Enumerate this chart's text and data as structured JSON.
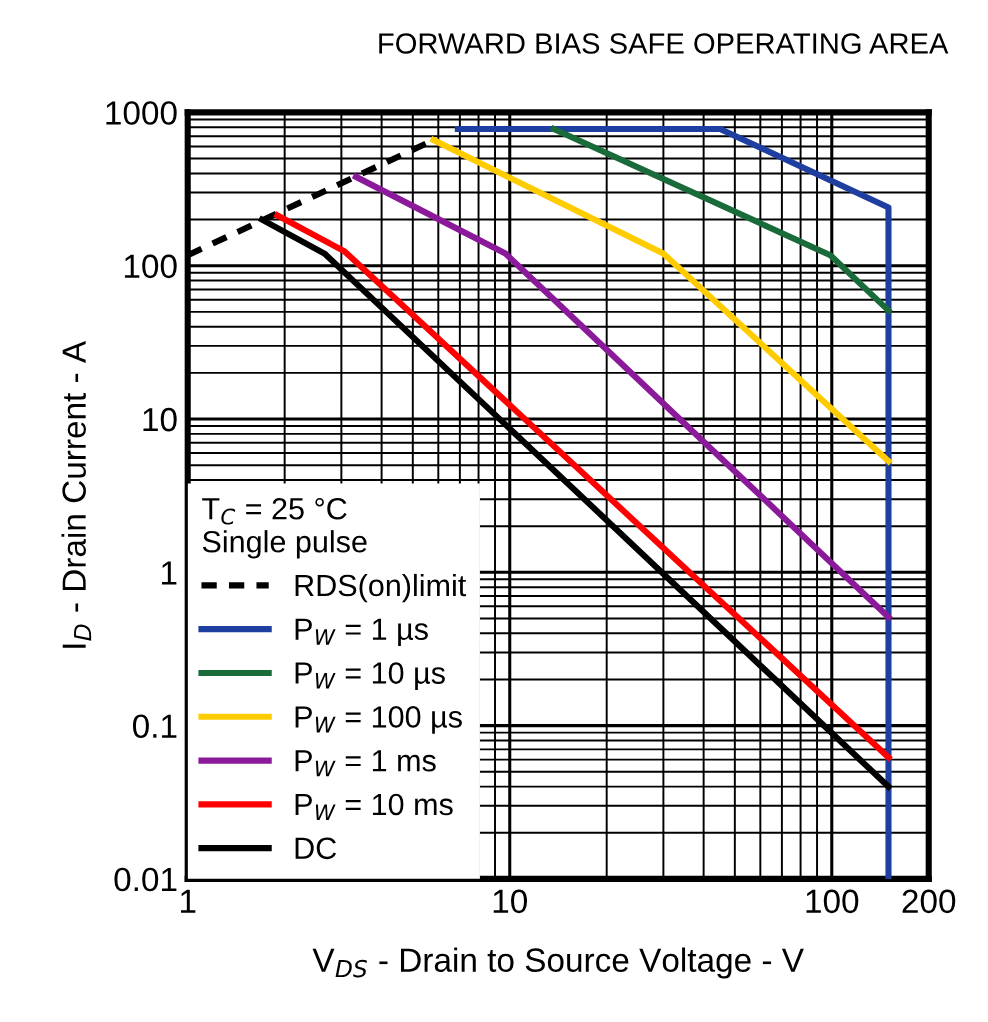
{
  "chart_data": {
    "type": "line",
    "title": "FORWARD BIAS SAFE OPERATING AREA",
    "xlabel": "V$_{DS}$ - Drain to Source Voltage - V",
    "ylabel": "I$_{D}$ - Drain Current - A",
    "legend_title": "T$_{C}$ = 25 °C\nSingle pulse",
    "log": "xy",
    "xlim": [
      1,
      200
    ],
    "ylim": [
      0.01,
      1000
    ],
    "xticks": [
      1,
      10,
      100,
      200
    ],
    "yticks": [
      0.01,
      0.1,
      1,
      10,
      100,
      1000
    ],
    "grid": true,
    "legend": "bottom left",
    "series": [
      {
        "name": "RDS(on)limit",
        "color": "#000000",
        "line_style": "dashed",
        "x": [
          1,
          5.8
        ],
        "values": [
          117,
          660
        ]
      },
      {
        "name": "P$_{W}$ = 1 µs",
        "color": "#1f3fa0",
        "line_style": "solid",
        "x": [
          6.9,
          45,
          150,
          150
        ],
        "values": [
          780,
          780,
          240,
          0.01
        ]
      },
      {
        "name": "P$_{W}$ = 10 µs",
        "color": "#1a6b3a",
        "line_style": "solid",
        "x": [
          13.7,
          99,
          150
        ],
        "values": [
          780,
          117,
          51
        ]
      },
      {
        "name": "P$_{W}$ = 100 µs",
        "color": "#ffcc00",
        "line_style": "solid",
        "x": [
          5.8,
          30,
          150
        ],
        "values": [
          660,
          120,
          5.3
        ]
      },
      {
        "name": "P$_{W}$ = 1 ms",
        "color": "#8b1a9a",
        "line_style": "solid",
        "x": [
          3.33,
          9.7,
          150
        ],
        "values": [
          380,
          120,
          0.51
        ]
      },
      {
        "name": "P$_{W}$ = 10 ms",
        "color": "#ff0000",
        "line_style": "solid",
        "x": [
          1.9,
          3.07,
          150
        ],
        "values": [
          213,
          124,
          0.062
        ]
      },
      {
        "name": "DC",
        "color": "#000000",
        "line_style": "solid",
        "x": [
          1.7,
          2.66,
          150
        ],
        "values": [
          200,
          120,
          0.04
        ]
      }
    ]
  }
}
